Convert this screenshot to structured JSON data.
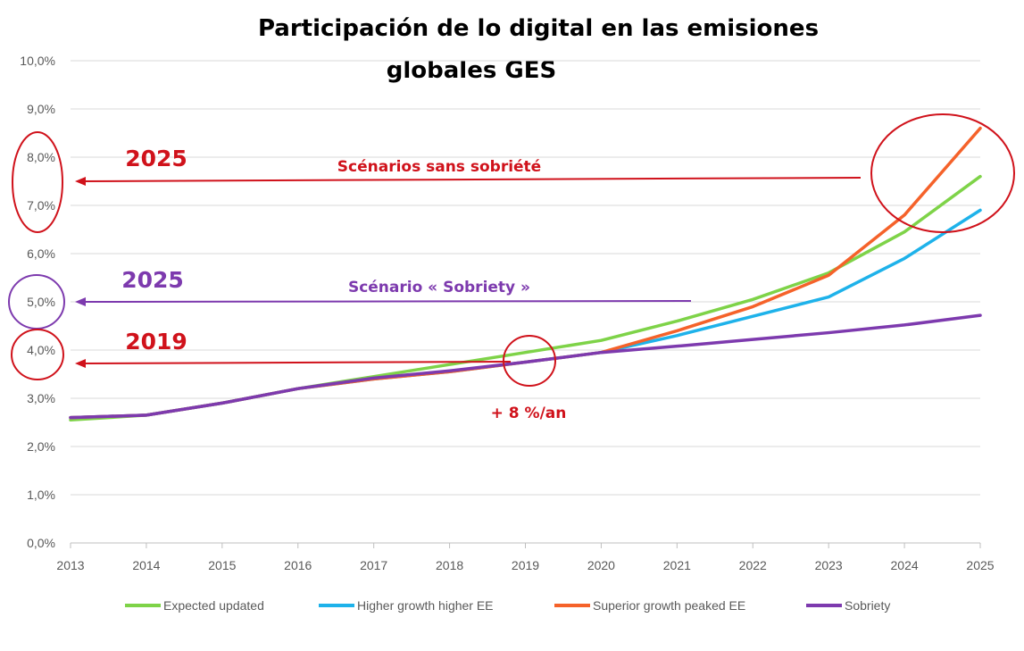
{
  "chart_data": {
    "type": "line",
    "title": "Participación de lo digital en las emisiones globales GES",
    "title_lines": [
      "Participación de lo digital en las emisiones",
      "globales GES"
    ],
    "xlabel": "",
    "ylabel": "",
    "x": [
      "2013",
      "2014",
      "2015",
      "2016",
      "2017",
      "2018",
      "2019",
      "2020",
      "2021",
      "2022",
      "2023",
      "2024",
      "2025"
    ],
    "ylim": [
      0,
      10
    ],
    "y_ticks": [
      0,
      1,
      2,
      3,
      4,
      5,
      6,
      7,
      8,
      9,
      10
    ],
    "y_tick_labels": [
      "0,0%",
      "1,0%",
      "2,0%",
      "3,0%",
      "4,0%",
      "5,0%",
      "6,0%",
      "7,0%",
      "8,0%",
      "9,0%",
      "10,0%"
    ],
    "grid": true,
    "legend_position": "bottom",
    "series": [
      {
        "name": "Expected updated",
        "color": "#7ED348",
        "values": [
          2.55,
          2.65,
          2.9,
          3.2,
          3.45,
          3.7,
          3.95,
          4.2,
          4.6,
          5.05,
          5.6,
          6.45,
          7.6
        ]
      },
      {
        "name": "Higher growth higher EE",
        "color": "#1EB2EA",
        "values": [
          2.6,
          2.65,
          2.9,
          3.2,
          3.4,
          3.55,
          3.75,
          3.95,
          4.3,
          4.7,
          5.1,
          5.9,
          6.9
        ]
      },
      {
        "name": "Superior growth peaked EE",
        "color": "#F5622A",
        "values": [
          2.6,
          2.65,
          2.9,
          3.2,
          3.4,
          3.55,
          3.75,
          3.95,
          4.4,
          4.9,
          5.55,
          6.8,
          8.6
        ]
      },
      {
        "name": "Sobriety",
        "color": "#7D3AAE",
        "values": [
          2.6,
          2.65,
          2.9,
          3.2,
          3.42,
          3.57,
          3.75,
          3.95,
          4.08,
          4.22,
          4.36,
          4.52,
          4.72
        ]
      }
    ],
    "annotations": {
      "year_2025_top": "2025",
      "sans_sobriete": "Scénarios sans sobriété",
      "year_2025_mid": "2025",
      "sobriety_scenario": "Scénario « Sobriety »",
      "year_2019": "2019",
      "growth_rate": "+ 8 %/an"
    },
    "colors": {
      "annotation_red": "#D0121B",
      "annotation_purple": "#7D3AAE",
      "grid": "#D9D9D9",
      "axis": "#BFBFBF"
    }
  }
}
